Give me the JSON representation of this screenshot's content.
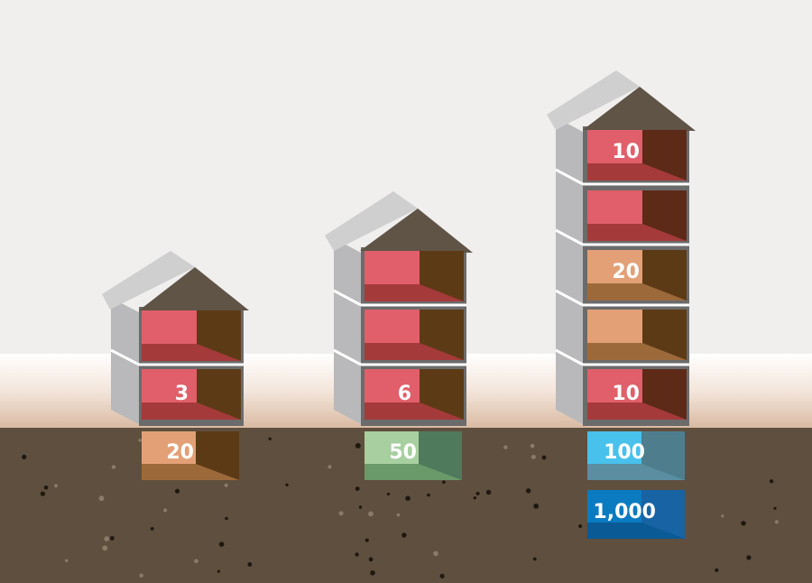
{
  "buildings": [
    {
      "id": "left",
      "floors": [
        {
          "label": "",
          "color": "#e05f6a"
        },
        {
          "label": "3",
          "color": "#e05f6a"
        }
      ],
      "basements": [
        {
          "label": "20",
          "color": "#e3a077"
        }
      ]
    },
    {
      "id": "middle",
      "floors": [
        {
          "label": "",
          "color": "#e05f6a"
        },
        {
          "label": "",
          "color": "#e05f6a"
        },
        {
          "label": "6",
          "color": "#e05f6a"
        }
      ],
      "basements": [
        {
          "label": "50",
          "color": "#a8cf9f"
        }
      ]
    },
    {
      "id": "right",
      "floors": [
        {
          "label": "10",
          "color": "#e05f6a"
        },
        {
          "label": "",
          "color": "#e05f6a"
        },
        {
          "label": "20",
          "color": "#e3a077"
        },
        {
          "label": "",
          "color": "#e3a077"
        },
        {
          "label": "10",
          "color": "#e05f6a"
        }
      ],
      "basements": [
        {
          "label": "100",
          "color": "#48c1ec"
        },
        {
          "label": "1,000",
          "color": "#0b7bc1"
        }
      ]
    }
  ],
  "colors": {
    "sky": "#f0efee",
    "ground": "#5f4f3e",
    "wall": "#b9b9bb",
    "roof": "#5f5446",
    "roof_top": "#cfcfcf",
    "room_back": "#5d3a16"
  }
}
